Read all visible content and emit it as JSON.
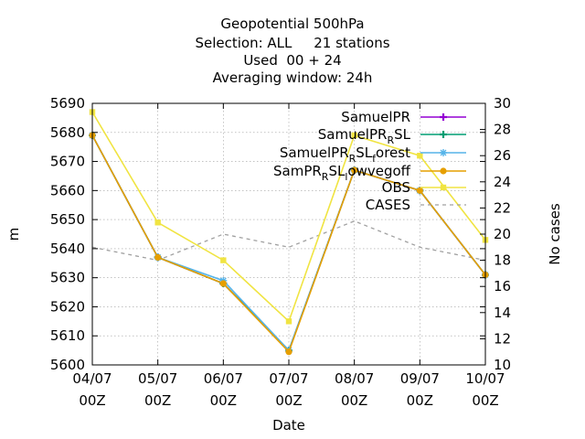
{
  "chart_data": {
    "type": "line",
    "title": [
      "Geopotential 500hPa",
      "Selection: ALL     21 stations",
      "Used  00 + 24",
      "Averaging window: 24h"
    ],
    "xlabel": "Date",
    "ylabel": "m",
    "y2label": "No cases",
    "categories": [
      {
        "line1": "04/07",
        "line2": "00Z"
      },
      {
        "line1": "05/07",
        "line2": "00Z"
      },
      {
        "line1": "06/07",
        "line2": "00Z"
      },
      {
        "line1": "07/07",
        "line2": "00Z"
      },
      {
        "line1": "08/07",
        "line2": "00Z"
      },
      {
        "line1": "09/07",
        "line2": "00Z"
      },
      {
        "line1": "10/07",
        "line2": "00Z"
      }
    ],
    "ylim": [
      5600,
      5690
    ],
    "y_ticks": [
      "5600",
      "5610",
      "5620",
      "5630",
      "5640",
      "5650",
      "5660",
      "5670",
      "5680",
      "5690"
    ],
    "y2lim": [
      10,
      30
    ],
    "y2_ticks": [
      "10",
      "12",
      "14",
      "16",
      "18",
      "20",
      "22",
      "24",
      "26",
      "28",
      "30"
    ],
    "grid": true,
    "legend_position": "top-right",
    "series": [
      {
        "name": "SamuelPR",
        "name_parts": [
          [
            "SamuelPR",
            ""
          ]
        ],
        "color": "#9400d3",
        "marker": "plus",
        "dashed": false,
        "axis": "y",
        "values": [
          5679,
          5637,
          5628,
          5605,
          5667,
          5660,
          5631
        ]
      },
      {
        "name": "SamuelPR_R SL",
        "name_parts": [
          [
            "SamuelPR",
            ""
          ],
          [
            "R",
            "sub"
          ],
          [
            "SL",
            ""
          ]
        ],
        "color": "#009e73",
        "marker": "plus",
        "dashed": false,
        "axis": "y",
        "values": [
          5679,
          5637,
          5628,
          5605,
          5667,
          5660,
          5631
        ]
      },
      {
        "name": "SamuelPR_R SL_forest",
        "name_parts": [
          [
            "SamuelPR",
            ""
          ],
          [
            "R",
            "sub"
          ],
          [
            "SL",
            ""
          ],
          [
            "f",
            "sub"
          ],
          [
            "orest",
            ""
          ]
        ],
        "color": "#56b4e9",
        "marker": "star",
        "dashed": false,
        "axis": "y",
        "values": [
          5679,
          5637,
          5629,
          5605,
          5667,
          5660,
          5631
        ]
      },
      {
        "name": "SamPR_R SL_lowvegoff",
        "name_parts": [
          [
            "SamPR",
            ""
          ],
          [
            "R",
            "sub"
          ],
          [
            "SL",
            ""
          ],
          [
            "l",
            "sub"
          ],
          [
            "owvegoff",
            ""
          ]
        ],
        "color": "#e69f00",
        "marker": "circle",
        "dashed": false,
        "axis": "y",
        "values": [
          5679,
          5637,
          5628,
          5604.5,
          5667,
          5660,
          5631
        ]
      },
      {
        "name": "OBS",
        "name_parts": [
          [
            "OBS",
            ""
          ]
        ],
        "color": "#f0e442",
        "marker": "square",
        "dashed": false,
        "axis": "y",
        "values": [
          5687,
          5649,
          5636,
          5615,
          5679,
          5672,
          5643
        ]
      },
      {
        "name": "CASES",
        "name_parts": [
          [
            "CASES",
            ""
          ]
        ],
        "color": "#a0a0a0",
        "marker": "none",
        "dashed": true,
        "axis": "y2",
        "values": [
          19,
          18,
          20,
          19,
          21,
          19,
          18
        ]
      }
    ]
  }
}
